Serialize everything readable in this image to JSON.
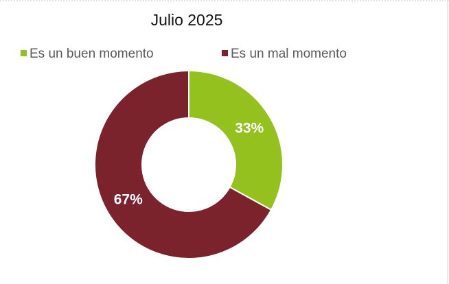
{
  "chart_data": {
    "type": "donut",
    "title": "Julio 2025",
    "categories": [
      "Es un buen momento",
      "Es un mal momento"
    ],
    "values": [
      33,
      67
    ],
    "value_labels": [
      "33%",
      "67%"
    ],
    "colors": [
      "#95c11f",
      "#7b232d"
    ],
    "legend": "top"
  }
}
